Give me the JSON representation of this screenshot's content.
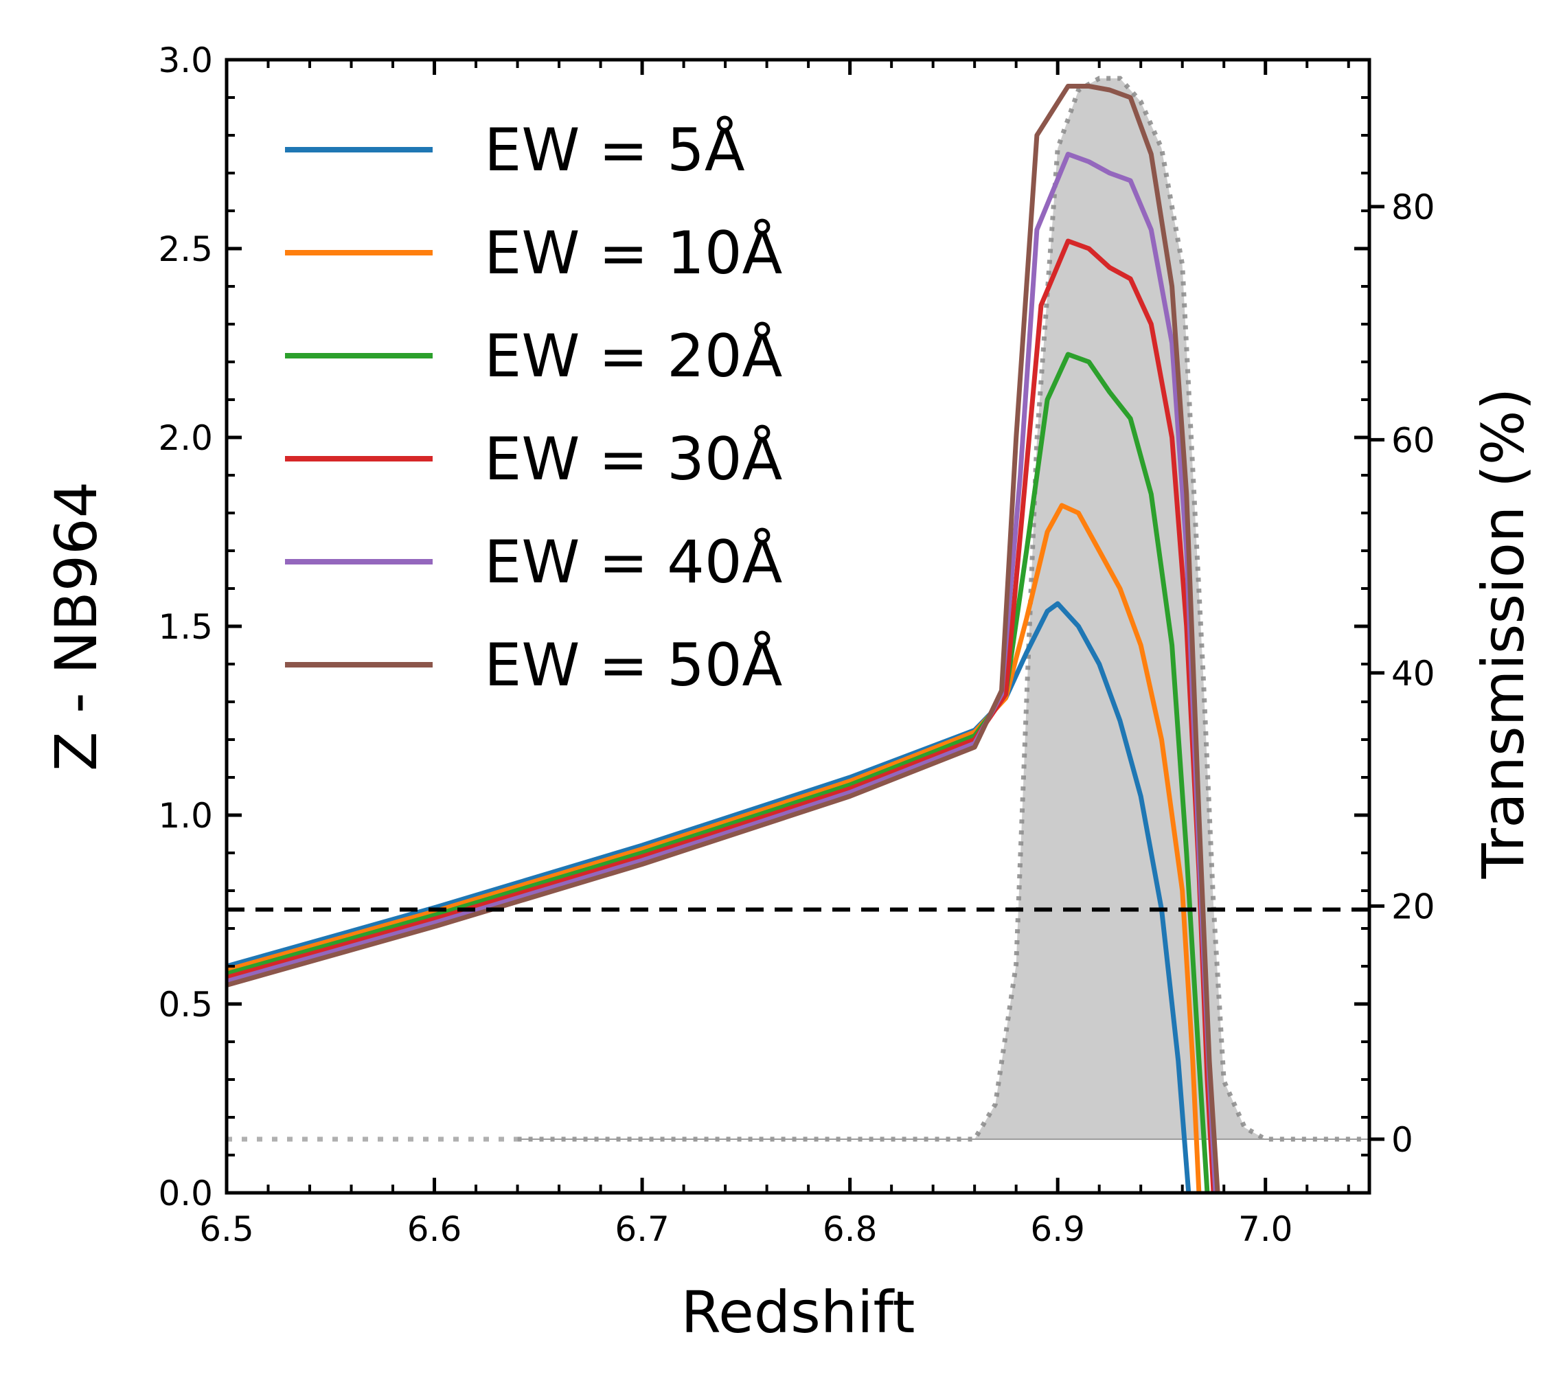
{
  "chart_data": {
    "type": "line",
    "xlabel": "Redshift",
    "ylabel": "Z - NB964",
    "y2label": "Transmission (%)",
    "xlim": [
      6.5,
      7.05
    ],
    "ylim": [
      0.0,
      3.0
    ],
    "y2lim": [
      -4.6,
      92.6
    ],
    "xticks": [
      "6.5",
      "6.6",
      "6.7",
      "6.8",
      "6.9",
      "7.0"
    ],
    "yticks": [
      "0.0",
      "0.5",
      "1.0",
      "1.5",
      "2.0",
      "2.5",
      "3.0"
    ],
    "y2ticks": [
      "0",
      "20",
      "40",
      "60",
      "80"
    ],
    "grid": false,
    "legend": "upper-left",
    "hline": 0.75,
    "series": [
      {
        "name": "EW = 5Å",
        "color": "#1f77b4",
        "x": [
          6.5,
          6.6,
          6.7,
          6.8,
          6.86,
          6.875,
          6.885,
          6.895,
          6.9,
          6.91,
          6.92,
          6.93,
          6.94,
          6.95,
          6.958,
          6.963
        ],
        "y": [
          0.6,
          0.755,
          0.92,
          1.1,
          1.225,
          1.31,
          1.43,
          1.54,
          1.56,
          1.5,
          1.4,
          1.25,
          1.05,
          0.75,
          0.35,
          0.0
        ]
      },
      {
        "name": "EW = 10Å",
        "color": "#ff7f0e",
        "x": [
          6.5,
          6.6,
          6.7,
          6.8,
          6.86,
          6.875,
          6.885,
          6.895,
          6.902,
          6.91,
          6.92,
          6.93,
          6.94,
          6.95,
          6.96,
          6.965,
          6.968
        ],
        "y": [
          0.59,
          0.745,
          0.91,
          1.09,
          1.22,
          1.31,
          1.52,
          1.75,
          1.82,
          1.8,
          1.7,
          1.6,
          1.45,
          1.2,
          0.8,
          0.35,
          0.0
        ]
      },
      {
        "name": "EW = 20Å",
        "color": "#2ca02c",
        "x": [
          6.5,
          6.6,
          6.7,
          6.8,
          6.86,
          6.875,
          6.885,
          6.895,
          6.905,
          6.915,
          6.925,
          6.935,
          6.945,
          6.955,
          6.962,
          6.968,
          6.972
        ],
        "y": [
          0.58,
          0.735,
          0.9,
          1.08,
          1.21,
          1.32,
          1.7,
          2.1,
          2.22,
          2.2,
          2.12,
          2.05,
          1.85,
          1.45,
          0.9,
          0.35,
          0.0
        ]
      },
      {
        "name": "EW = 30Å",
        "color": "#d62728",
        "x": [
          6.5,
          6.6,
          6.7,
          6.8,
          6.86,
          6.875,
          6.883,
          6.892,
          6.905,
          6.915,
          6.925,
          6.935,
          6.945,
          6.955,
          6.962,
          6.968,
          6.972,
          6.975
        ],
        "y": [
          0.57,
          0.725,
          0.89,
          1.07,
          1.2,
          1.32,
          1.8,
          2.35,
          2.52,
          2.5,
          2.45,
          2.42,
          2.3,
          2.0,
          1.5,
          0.85,
          0.3,
          0.0
        ]
      },
      {
        "name": "EW = 40Å",
        "color": "#9467bd",
        "x": [
          6.5,
          6.6,
          6.7,
          6.8,
          6.86,
          6.873,
          6.882,
          6.89,
          6.905,
          6.915,
          6.925,
          6.935,
          6.945,
          6.955,
          6.962,
          6.968,
          6.973,
          6.976
        ],
        "y": [
          0.56,
          0.715,
          0.88,
          1.06,
          1.19,
          1.32,
          1.9,
          2.55,
          2.75,
          2.73,
          2.7,
          2.68,
          2.55,
          2.25,
          1.7,
          0.9,
          0.3,
          0.0
        ]
      },
      {
        "name": "EW = 50Å",
        "color": "#8c564b",
        "x": [
          6.5,
          6.6,
          6.7,
          6.8,
          6.86,
          6.873,
          6.88,
          6.89,
          6.905,
          6.915,
          6.925,
          6.935,
          6.945,
          6.955,
          6.962,
          6.968,
          6.973,
          6.977
        ],
        "y": [
          0.55,
          0.705,
          0.87,
          1.05,
          1.18,
          1.33,
          2.0,
          2.8,
          2.93,
          2.93,
          2.92,
          2.9,
          2.75,
          2.4,
          1.85,
          1.0,
          0.35,
          0.0
        ]
      }
    ],
    "transmission": {
      "color": "#cccccc",
      "x": [
        6.64,
        6.86,
        6.87,
        6.88,
        6.89,
        6.9,
        6.91,
        6.92,
        6.93,
        6.94,
        6.95,
        6.96,
        6.97,
        6.975,
        6.98,
        6.99,
        7.0,
        7.05
      ],
      "y": [
        0,
        0,
        3,
        15,
        60,
        85,
        90,
        91,
        91,
        89,
        85,
        75,
        40,
        20,
        5,
        1,
        0,
        0
      ]
    }
  }
}
